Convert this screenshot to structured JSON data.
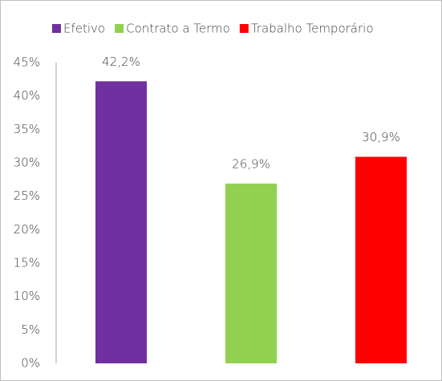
{
  "chart_data": {
    "type": "bar",
    "categories": [
      null
    ],
    "series": [
      {
        "name": "Efetivo",
        "color": "#7030a0",
        "values": [
          42.2
        ],
        "value_labels": [
          "42,2%"
        ]
      },
      {
        "name": "Contrato a Termo",
        "color": "#92d050",
        "values": [
          26.9
        ],
        "value_labels": [
          "26,9%"
        ]
      },
      {
        "name": "Trabalho Temporário",
        "color": "#ff0000",
        "values": [
          30.9
        ],
        "value_labels": [
          "30,9%"
        ]
      }
    ],
    "ylim": [
      0,
      45
    ],
    "yticks": [
      {
        "value": 0,
        "label": "0%"
      },
      {
        "value": 5,
        "label": "5%"
      },
      {
        "value": 10,
        "label": "10%"
      },
      {
        "value": 15,
        "label": "15%"
      },
      {
        "value": 20,
        "label": "20%"
      },
      {
        "value": 25,
        "label": "25%"
      },
      {
        "value": 30,
        "label": "30%"
      },
      {
        "value": 35,
        "label": "35%"
      },
      {
        "value": 40,
        "label": "40%"
      },
      {
        "value": 45,
        "label": "45%"
      }
    ],
    "grid": false,
    "legend": "top"
  }
}
